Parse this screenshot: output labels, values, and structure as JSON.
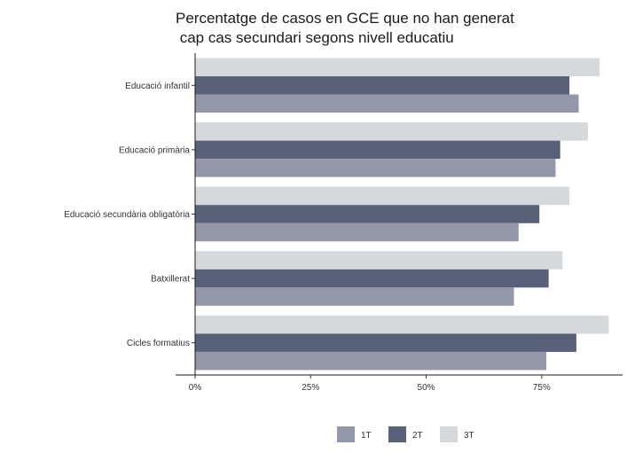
{
  "colors": {
    "series_1T": "#9497a8",
    "series_2T": "#596079",
    "series_3T": "#d6d9db"
  },
  "chart_data": {
    "type": "bar",
    "orientation": "horizontal",
    "title_lines": [
      "Percentatge de casos en GCE que no han generat",
      " cap cas secundari segons nivell educatiu"
    ],
    "categories": [
      "Educació infantil",
      "Educació primària",
      "Educació secundària obligatòria",
      "Batxillerat",
      "Cicles formatius"
    ],
    "series": [
      {
        "name": "1T",
        "values": [
          83,
          78,
          70,
          69,
          76
        ]
      },
      {
        "name": "2T",
        "values": [
          81,
          79,
          74.5,
          76.5,
          82.5
        ]
      },
      {
        "name": "3T",
        "values": [
          87.5,
          85,
          81,
          79.5,
          89.5
        ]
      }
    ],
    "x_ticks": [
      0,
      25,
      50,
      75
    ],
    "x_tick_labels": [
      "0%",
      "25%",
      "50%",
      "75%"
    ],
    "xlim": [
      0,
      92.5
    ],
    "grid": false,
    "legend_position": "bottom"
  }
}
